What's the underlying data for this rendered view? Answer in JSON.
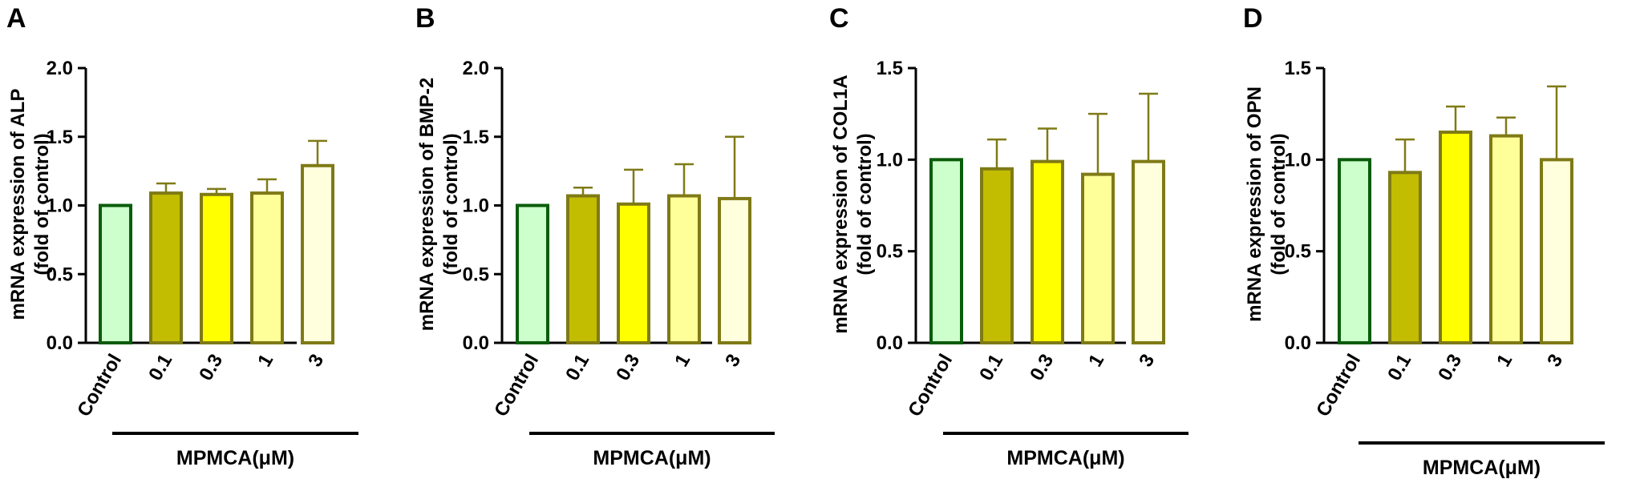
{
  "chart_data": [
    {
      "type": "bar",
      "panel": "A",
      "ylabel": [
        "mRNA expression of ALP",
        "(fold of control)"
      ],
      "categories": [
        "Control",
        "0.1",
        "0.3",
        "1",
        "3"
      ],
      "values": [
        1.0,
        1.09,
        1.08,
        1.09,
        1.29
      ],
      "errors": [
        0.0,
        0.07,
        0.04,
        0.1,
        0.18
      ],
      "ylim": [
        0,
        2.0
      ],
      "yticks": [
        0.0,
        0.5,
        1.0,
        1.5,
        2.0
      ],
      "tick_labels": [
        "0.0",
        "0.5",
        "1.0",
        "1.5",
        "2.0"
      ],
      "group_label": "MPMCA(μM)"
    },
    {
      "type": "bar",
      "panel": "B",
      "ylabel": [
        "mRNA expression of BMP-2",
        "(fold of control)"
      ],
      "categories": [
        "Control",
        "0.1",
        "0.3",
        "1",
        "3"
      ],
      "values": [
        1.0,
        1.07,
        1.01,
        1.07,
        1.05
      ],
      "errors": [
        0.0,
        0.06,
        0.25,
        0.23,
        0.45
      ],
      "ylim": [
        0,
        2.0
      ],
      "yticks": [
        0.0,
        0.5,
        1.0,
        1.5,
        2.0
      ],
      "tick_labels": [
        "0.0",
        "0.5",
        "1.0",
        "1.5",
        "2.0"
      ],
      "group_label": "MPMCA(μM)"
    },
    {
      "type": "bar",
      "panel": "C",
      "ylabel": [
        "mRNA expression of COL1A",
        "(fold of control)"
      ],
      "categories": [
        "Control",
        "0.1",
        "0.3",
        "1",
        "3"
      ],
      "values": [
        1.0,
        0.95,
        0.99,
        0.92,
        0.99
      ],
      "errors": [
        0.0,
        0.16,
        0.18,
        0.33,
        0.37
      ],
      "ylim": [
        0,
        1.5
      ],
      "yticks": [
        0.0,
        0.5,
        1.0,
        1.5
      ],
      "tick_labels": [
        "0.0",
        "0.5",
        "1.0",
        "1.5"
      ],
      "group_label": "MPMCA(μM)"
    },
    {
      "type": "bar",
      "panel": "D",
      "ylabel": [
        "mRNA expression of OPN",
        "(fold of control)"
      ],
      "categories": [
        "Control",
        "0.1",
        "0.3",
        "1",
        "3"
      ],
      "values": [
        1.0,
        0.93,
        1.15,
        1.13,
        1.0
      ],
      "errors": [
        0.0,
        0.18,
        0.14,
        0.1,
        0.4
      ],
      "ylim": [
        0,
        1.5
      ],
      "yticks": [
        0.0,
        0.5,
        1.0,
        1.5
      ],
      "tick_labels": [
        "0.0",
        "0.5",
        "1.0",
        "1.5"
      ],
      "group_label": "MPMCA(μM)"
    }
  ],
  "colors": {
    "fills": [
      "#ccffcc",
      "#c2bd00",
      "#ffff00",
      "#ffff99",
      "#ffffdd"
    ],
    "strokes": [
      "#0b5c0b",
      "#7f7a16",
      "#7f7a16",
      "#7f7a16",
      "#7f7a16"
    ],
    "error_bar": "#7f7a16"
  }
}
